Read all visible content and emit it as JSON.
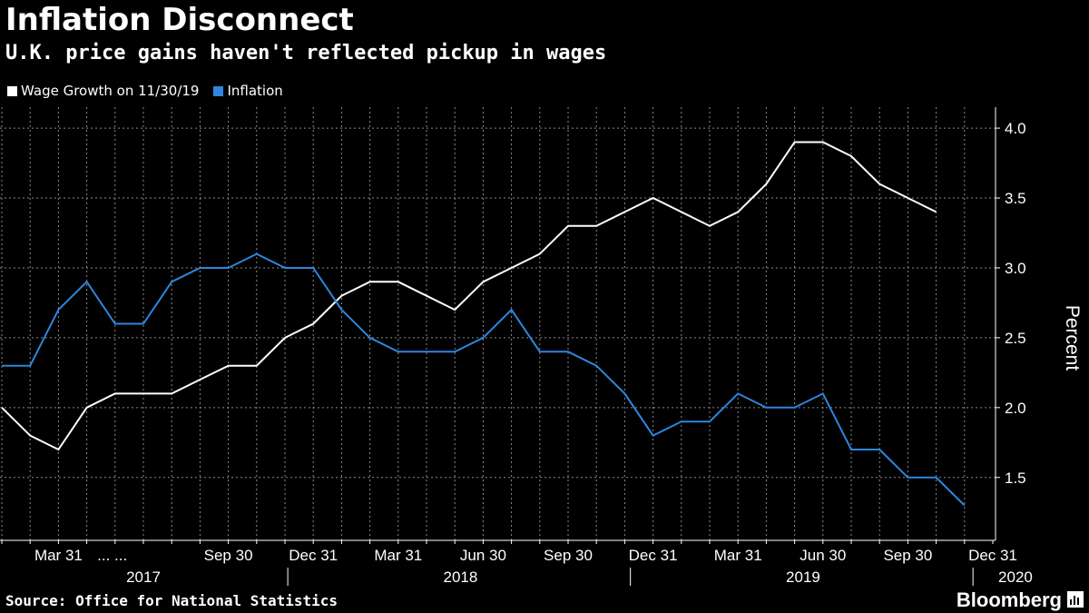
{
  "header": {
    "title": "Inflation Disconnect",
    "subtitle": "U.K. price gains haven't reflected pickup in wages"
  },
  "legend": {
    "items": [
      {
        "label": "Wage Growth on 11/30/19",
        "color": "#ffffff"
      },
      {
        "label": "Inflation",
        "color": "#2e86de"
      }
    ]
  },
  "footer": {
    "source": "Source: Office for National Statistics",
    "brand": "Bloomberg"
  },
  "chart_data": {
    "type": "line",
    "title": "Inflation Disconnect",
    "subtitle": "U.K. price gains haven't reflected pickup in wages",
    "ylabel": "Percent",
    "ylim": [
      1.05,
      4.15
    ],
    "yticks": [
      1.5,
      2.0,
      2.5,
      3.0,
      3.5,
      4.0
    ],
    "ytick_labels": [
      "1.5",
      "2.0",
      "2.5",
      "3.0",
      "3.5",
      "4.0"
    ],
    "x_tick_labels": [
      "Mar 31",
      "... ...",
      "Sep 30",
      "Dec 31",
      "Mar 31",
      "Jun 30",
      "Sep 30",
      "Dec 31",
      "Mar 31",
      "Jun 30",
      "Sep 30",
      "Dec 31"
    ],
    "x_year_labels": [
      "2017",
      "2018",
      "2019",
      "2020"
    ],
    "grid": true,
    "legend_position": "top-left",
    "y_axis_side": "right",
    "x": [
      "2017-01",
      "2017-02",
      "2017-03",
      "2017-04",
      "2017-05",
      "2017-06",
      "2017-07",
      "2017-08",
      "2017-09",
      "2017-10",
      "2017-11",
      "2017-12",
      "2018-01",
      "2018-02",
      "2018-03",
      "2018-04",
      "2018-05",
      "2018-06",
      "2018-07",
      "2018-08",
      "2018-09",
      "2018-10",
      "2018-11",
      "2018-12",
      "2019-01",
      "2019-02",
      "2019-03",
      "2019-04",
      "2019-05",
      "2019-06",
      "2019-07",
      "2019-08",
      "2019-09",
      "2019-10",
      "2019-11"
    ],
    "series": [
      {
        "name": "Wage Growth on 11/30/19",
        "color": "#ffffff",
        "values": [
          2.0,
          1.8,
          1.7,
          2.0,
          2.1,
          2.1,
          2.1,
          2.2,
          2.3,
          2.3,
          2.5,
          2.6,
          2.8,
          2.9,
          2.9,
          2.8,
          2.7,
          2.9,
          3.0,
          3.1,
          3.3,
          3.3,
          3.4,
          3.5,
          3.4,
          3.3,
          3.4,
          3.6,
          3.9,
          3.9,
          3.8,
          3.6,
          3.5,
          3.4,
          null
        ]
      },
      {
        "name": "Inflation",
        "color": "#2e86de",
        "values": [
          2.3,
          2.3,
          2.7,
          2.9,
          2.6,
          2.6,
          2.9,
          3.0,
          3.0,
          3.1,
          3.0,
          3.0,
          2.7,
          2.5,
          2.4,
          2.4,
          2.4,
          2.5,
          2.7,
          2.4,
          2.4,
          2.3,
          2.1,
          1.8,
          1.9,
          1.9,
          2.1,
          2.0,
          2.0,
          2.1,
          1.7,
          1.7,
          1.5,
          1.5,
          1.3
        ]
      }
    ]
  }
}
